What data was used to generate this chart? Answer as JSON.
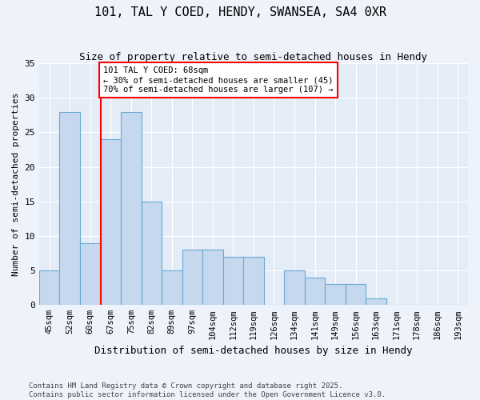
{
  "title1": "101, TAL Y COED, HENDY, SWANSEA, SA4 0XR",
  "title2": "Size of property relative to semi-detached houses in Hendy",
  "xlabel": "Distribution of semi-detached houses by size in Hendy",
  "ylabel": "Number of semi-detached properties",
  "categories": [
    "45sqm",
    "52sqm",
    "60sqm",
    "67sqm",
    "75sqm",
    "82sqm",
    "89sqm",
    "97sqm",
    "104sqm",
    "112sqm",
    "119sqm",
    "126sqm",
    "134sqm",
    "141sqm",
    "149sqm",
    "156sqm",
    "163sqm",
    "171sqm",
    "178sqm",
    "186sqm",
    "193sqm"
  ],
  "values": [
    5,
    28,
    9,
    24,
    28,
    15,
    5,
    8,
    8,
    7,
    7,
    0,
    5,
    4,
    3,
    3,
    1,
    0,
    0,
    0,
    0
  ],
  "bar_color": "#c5d8ed",
  "bar_edge_color": "#6aaad4",
  "annotation_line1": "101 TAL Y COED: 68sqm",
  "annotation_line2": "← 30% of semi-detached houses are smaller (45)",
  "annotation_line3": "70% of semi-detached houses are larger (107) →",
  "footnote1": "Contains HM Land Registry data © Crown copyright and database right 2025.",
  "footnote2": "Contains public sector information licensed under the Open Government Licence v3.0.",
  "ylim": [
    0,
    35
  ],
  "yticks": [
    0,
    5,
    10,
    15,
    20,
    25,
    30,
    35
  ],
  "bg_color": "#eef2fb",
  "plot_bg_color": "#e4ecf8"
}
